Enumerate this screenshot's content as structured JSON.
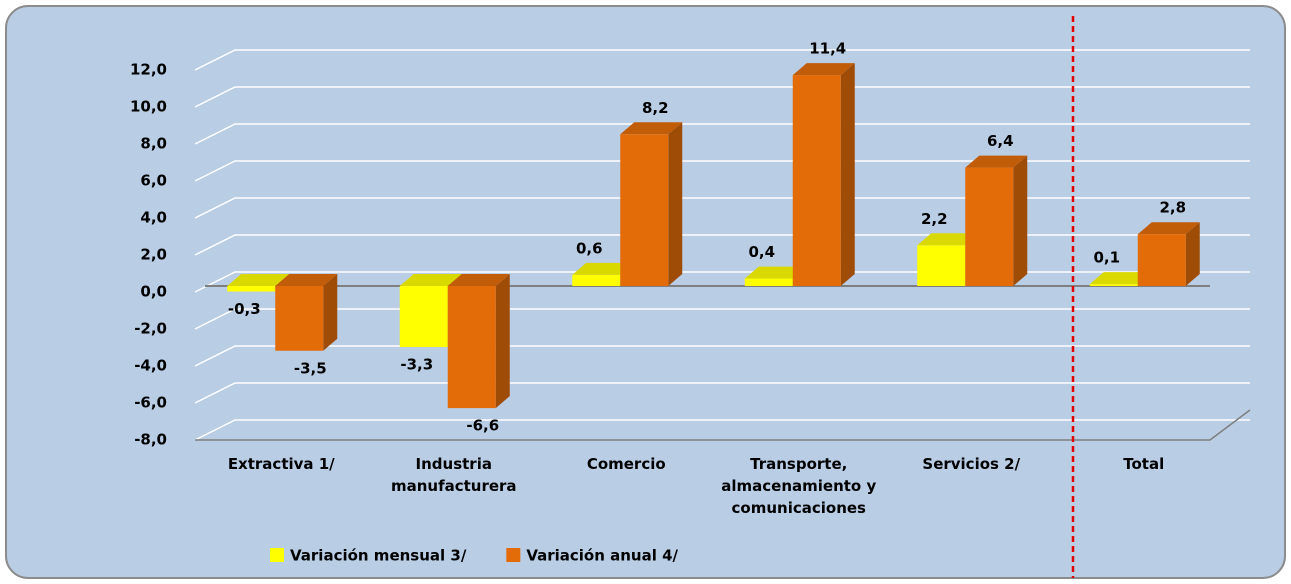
{
  "chart_data": {
    "type": "bar",
    "categories": [
      "Extractiva 1/",
      "Industria manufacturera",
      "Comercio",
      "Transporte, almacenamiento y comunicaciones",
      "Servicios  2/",
      "Total"
    ],
    "series": [
      {
        "name": "Variación mensual 3/",
        "color": "#ffff00",
        "values": [
          -0.3,
          -3.3,
          0.6,
          0.4,
          2.2,
          0.1
        ],
        "value_labels": [
          "-0,3",
          "-3,3",
          "0,6",
          "0,4",
          "2,2",
          "0,1"
        ]
      },
      {
        "name": "Variación anual 4/",
        "color": "#e36c09",
        "values": [
          -3.5,
          -6.6,
          8.2,
          11.4,
          6.4,
          2.8
        ],
        "value_labels": [
          "-3,5",
          "-6,6",
          "8,2",
          "11,4",
          "6,4",
          "2,8"
        ]
      }
    ],
    "ylim": [
      -8,
      12
    ],
    "yticks": [
      {
        "value": -8,
        "label": "-8,0"
      },
      {
        "value": -6,
        "label": "-6,0"
      },
      {
        "value": -4,
        "label": "-4,0"
      },
      {
        "value": -2,
        "label": "-2,0"
      },
      {
        "value": 0,
        "label": "0,0"
      },
      {
        "value": 2,
        "label": "2,0"
      },
      {
        "value": 4,
        "label": "4,0"
      },
      {
        "value": 6,
        "label": "6,0"
      },
      {
        "value": 8,
        "label": "8,0"
      },
      {
        "value": 10,
        "label": "10,0"
      },
      {
        "value": 12,
        "label": "12,0"
      }
    ],
    "grid": true,
    "legend": "bottom"
  }
}
